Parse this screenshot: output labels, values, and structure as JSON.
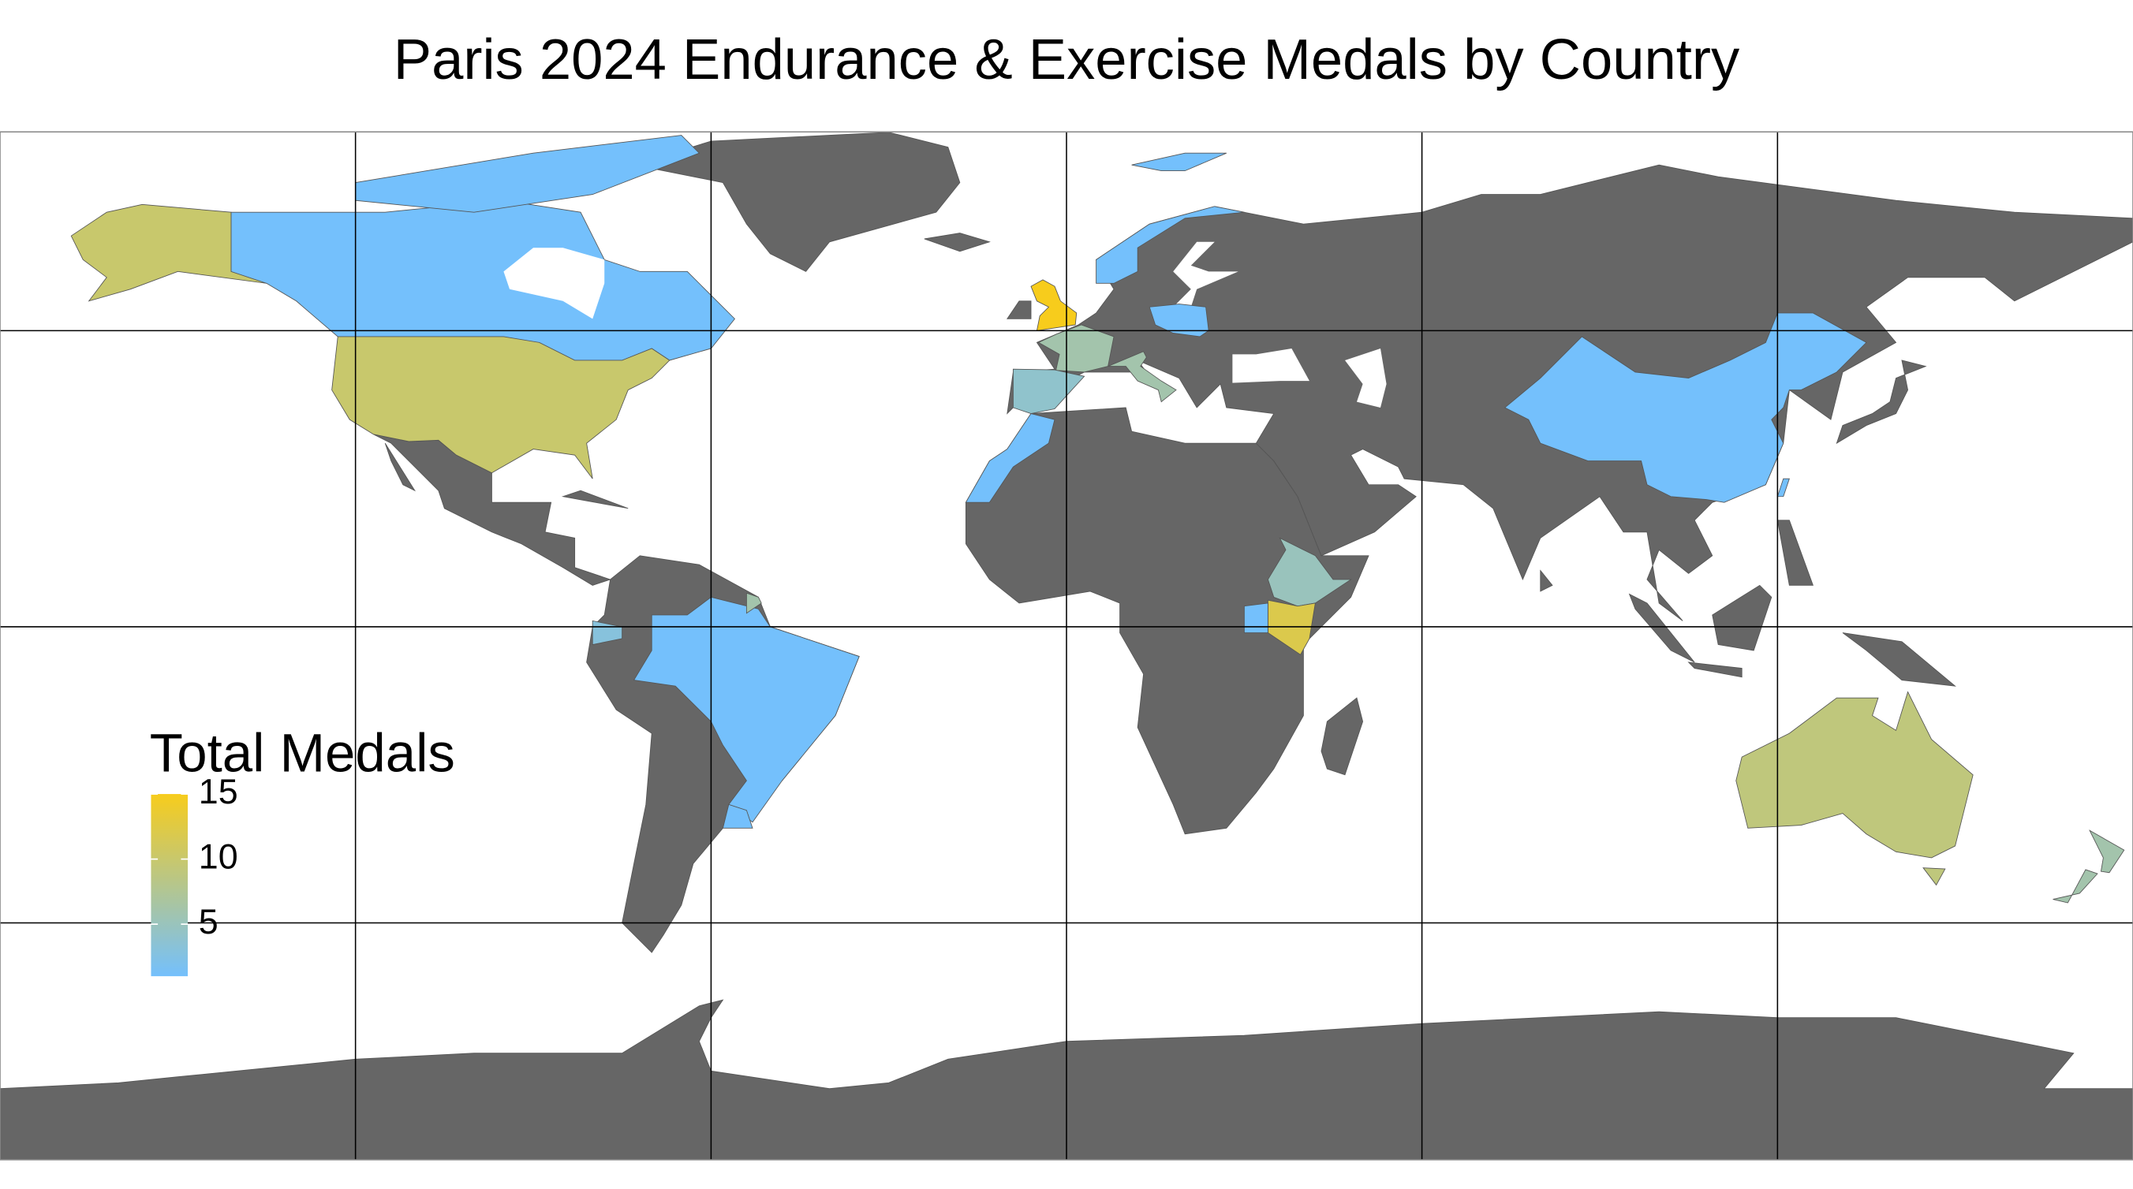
{
  "chart_data": {
    "type": "choropleth",
    "title": "Paris 2024 Endurance & Exercise Medals by Country",
    "legend_title": "Total Medals",
    "values": [
      15,
      10,
      12,
      9,
      5,
      6,
      6,
      4,
      6,
      1,
      1,
      1,
      1,
      1,
      1,
      1,
      3,
      1,
      1
    ],
    "lim": [
      1,
      15
    ],
    "legend_ticks": [
      5,
      10,
      15
    ],
    "colors": [
      "#74c0fc",
      "#f7cc1c"
    ],
    "land_color": "#666666"
  }
}
